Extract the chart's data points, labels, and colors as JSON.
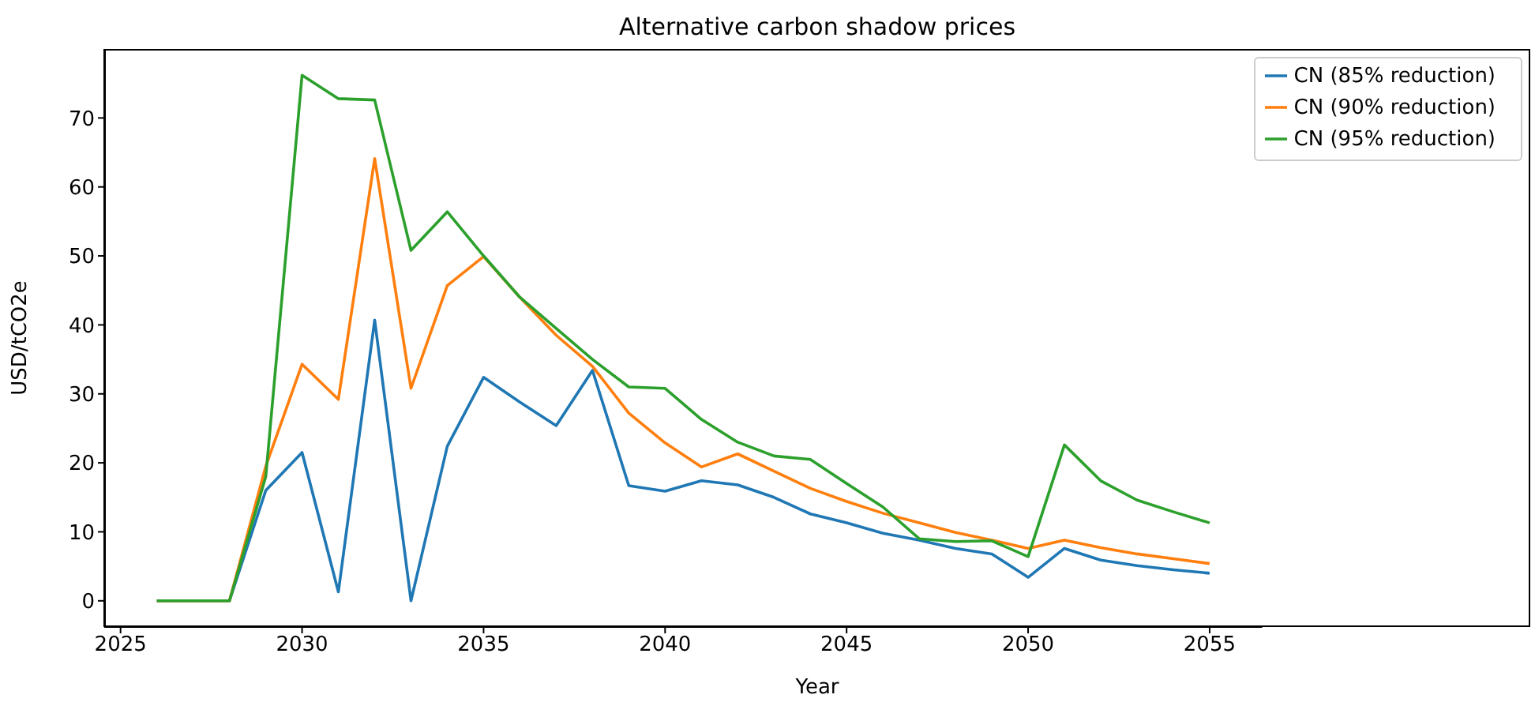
{
  "chart_data": {
    "type": "line",
    "title": "Alternative carbon shadow prices",
    "xlabel": "Year",
    "ylabel": "USD/tCO2e",
    "x": [
      2026,
      2027,
      2028,
      2029,
      2030,
      2031,
      2032,
      2033,
      2034,
      2035,
      2036,
      2037,
      2038,
      2039,
      2040,
      2041,
      2042,
      2043,
      2044,
      2045,
      2046,
      2047,
      2048,
      2049,
      2050,
      2051,
      2052,
      2053,
      2054,
      2055
    ],
    "series": [
      {
        "name": "CN (85% reduction)",
        "color": "#1f77b4",
        "values": [
          0,
          0,
          0,
          16,
          21.5,
          1.3,
          40.7,
          0,
          22.4,
          32.4,
          28.8,
          25.4,
          33.4,
          16.7,
          15.9,
          17.4,
          16.8,
          15,
          12.6,
          11.3,
          9.8,
          8.8,
          7.6,
          6.8,
          3.4,
          7.6,
          5.9,
          5.1,
          4.5,
          4.0
        ]
      },
      {
        "name": "CN (90% reduction)",
        "color": "#ff7f0e",
        "values": [
          0,
          0,
          0,
          19.5,
          34.3,
          29.2,
          64.1,
          30.8,
          45.7,
          49.9,
          44,
          38.5,
          34,
          27.2,
          22.9,
          19.4,
          21.3,
          18.8,
          16.3,
          14.4,
          12.7,
          11.3,
          9.9,
          8.8,
          7.6,
          8.8,
          7.7,
          6.8,
          6.1,
          5.4
        ]
      },
      {
        "name": "CN (95% reduction)",
        "color": "#2ca02c",
        "values": [
          0,
          0,
          0,
          18,
          76.2,
          72.8,
          72.6,
          50.8,
          56.4,
          50,
          44,
          39.5,
          35,
          31,
          30.8,
          26.3,
          23,
          21,
          20.5,
          17,
          13.6,
          9,
          8.6,
          8.7,
          6.4,
          22.6,
          17.4,
          14.6,
          12.9,
          11.3
        ]
      }
    ],
    "xlim": [
      2024.55,
      2056.45
    ],
    "xticks": [
      2025,
      2030,
      2035,
      2040,
      2045,
      2050,
      2055
    ],
    "ylim": [
      -3.8,
      80
    ],
    "yticks": [
      0,
      10,
      20,
      30,
      40,
      50,
      60,
      70
    ],
    "grid": false,
    "legend": "top right",
    "marker": "none",
    "line_style": "solid"
  }
}
